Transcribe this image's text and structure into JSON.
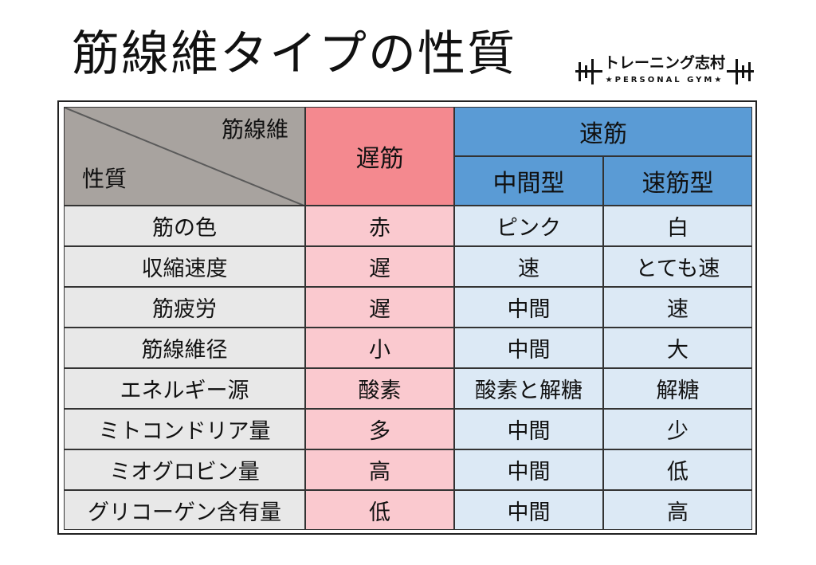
{
  "title": "筋線維タイプの性質",
  "logo": {
    "name": "トレーニング志村",
    "tagline": "★PERSONAL GYM★"
  },
  "table": {
    "corner_top": "筋線維",
    "corner_bottom": "性質",
    "slow_header": "遅筋",
    "fast_header": "速筋",
    "fast_sub": [
      "中間型",
      "速筋型"
    ],
    "rows": [
      {
        "property": "筋の色",
        "slow": "赤",
        "intermediate": "ピンク",
        "fast": "白"
      },
      {
        "property": "収縮速度",
        "slow": "遅",
        "intermediate": "速",
        "fast": "とても速"
      },
      {
        "property": "筋疲労",
        "slow": "遅",
        "intermediate": "中間",
        "fast": "速"
      },
      {
        "property": "筋線維径",
        "slow": "小",
        "intermediate": "中間",
        "fast": "大"
      },
      {
        "property": "エネルギー源",
        "slow": "酸素",
        "intermediate": "酸素と解糖",
        "fast": "解糖"
      },
      {
        "property": "ミトコンドリア量",
        "slow": "多",
        "intermediate": "中間",
        "fast": "少"
      },
      {
        "property": "ミオグロビン量",
        "slow": "高",
        "intermediate": "中間",
        "fast": "低"
      },
      {
        "property": "グリコーゲン含有量",
        "slow": "低",
        "intermediate": "中間",
        "fast": "高"
      }
    ]
  },
  "colors": {
    "corner": "#a8a39f",
    "slow_header": "#f4898f",
    "fast_header": "#5a9bd5",
    "property_cell": "#e8e8e8",
    "slow_cell": "#fac9cf",
    "fast_cell": "#dce9f5"
  }
}
